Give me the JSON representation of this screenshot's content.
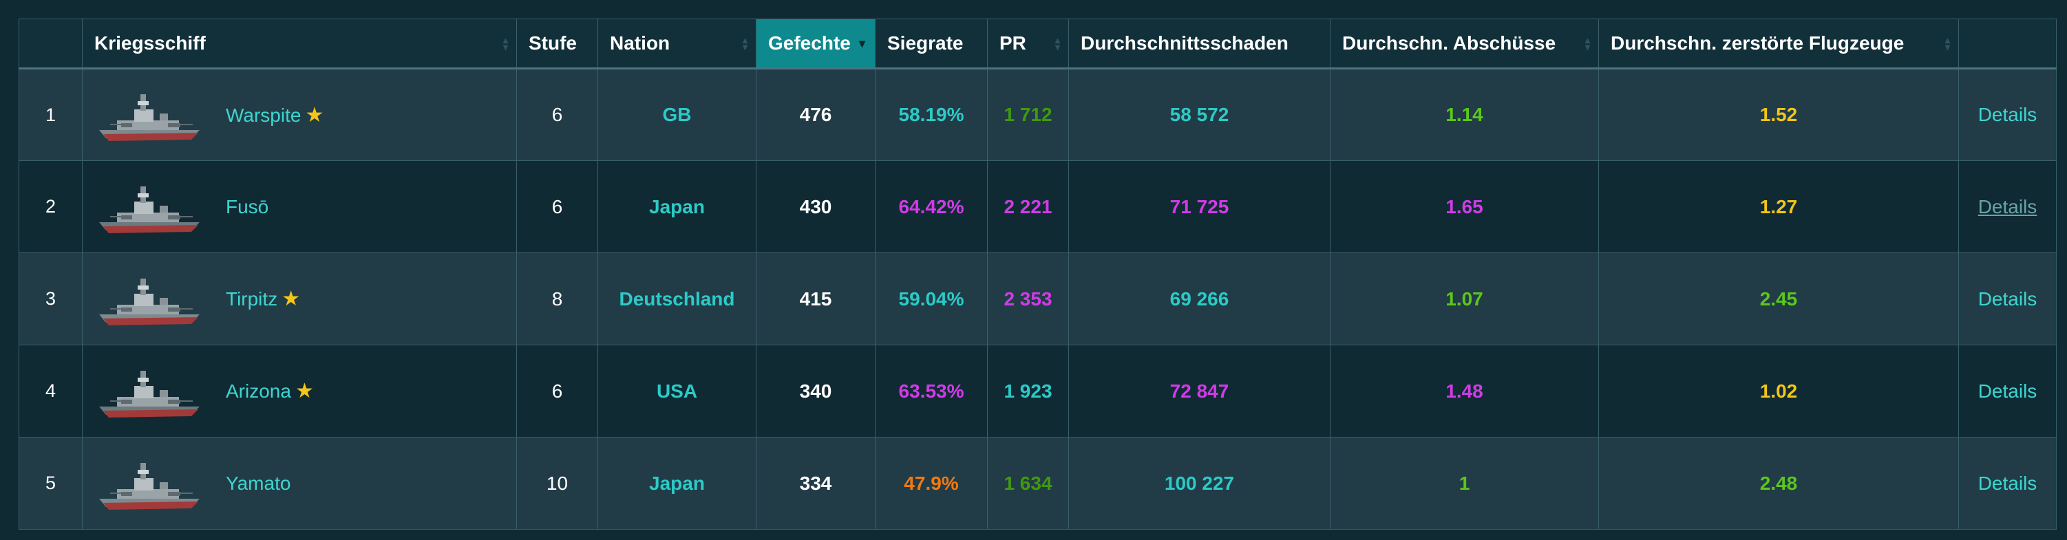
{
  "columns": [
    {
      "key": "rank",
      "label": ""
    },
    {
      "key": "ship",
      "label": "Kriegsschiff"
    },
    {
      "key": "tier",
      "label": "Stufe"
    },
    {
      "key": "nation",
      "label": "Nation"
    },
    {
      "key": "battles",
      "label": "Gefechte"
    },
    {
      "key": "winrate",
      "label": "Siegrate"
    },
    {
      "key": "pr",
      "label": "PR"
    },
    {
      "key": "avg_damage",
      "label": "Durchschnittsschaden"
    },
    {
      "key": "avg_kills",
      "label": "Durchschn. Abschüsse"
    },
    {
      "key": "avg_planes",
      "label": "Durchschn. zerstörte Flugzeuge"
    },
    {
      "key": "details",
      "label": ""
    }
  ],
  "sorted_column": "battles",
  "details_label": "Details",
  "colors": {
    "teal": "#2ccbc7",
    "magenta": "#d23ae8",
    "green": "#3f9a0f",
    "lime": "#5cc81a",
    "orange": "#f07a12",
    "yellow": "#f2c519",
    "star": "#f5c518",
    "header_sorted": "#0e8a8e"
  },
  "rows": [
    {
      "rank": "1",
      "name": "Warspite",
      "premium": true,
      "tier": "6",
      "nation": "GB",
      "battles": "476",
      "winrate": "58.19%",
      "winrate_color": "teal",
      "pr": "1 712",
      "pr_color": "green",
      "avg_damage": "58 572",
      "avg_damage_color": "teal",
      "avg_kills": "1.14",
      "avg_kills_color": "lime",
      "avg_planes": "1.52",
      "avg_planes_color": "yellow",
      "details_hover": false
    },
    {
      "rank": "2",
      "name": "Fusō",
      "premium": false,
      "tier": "6",
      "nation": "Japan",
      "battles": "430",
      "winrate": "64.42%",
      "winrate_color": "magenta",
      "pr": "2 221",
      "pr_color": "magenta",
      "avg_damage": "71 725",
      "avg_damage_color": "magenta",
      "avg_kills": "1.65",
      "avg_kills_color": "magenta",
      "avg_planes": "1.27",
      "avg_planes_color": "yellow",
      "details_hover": true
    },
    {
      "rank": "3",
      "name": "Tirpitz",
      "premium": true,
      "tier": "8",
      "nation": "Deutschland",
      "battles": "415",
      "winrate": "59.04%",
      "winrate_color": "teal",
      "pr": "2 353",
      "pr_color": "magenta",
      "avg_damage": "69 266",
      "avg_damage_color": "teal",
      "avg_kills": "1.07",
      "avg_kills_color": "lime",
      "avg_planes": "2.45",
      "avg_planes_color": "lime",
      "details_hover": false
    },
    {
      "rank": "4",
      "name": "Arizona",
      "premium": true,
      "tier": "6",
      "nation": "USA",
      "battles": "340",
      "winrate": "63.53%",
      "winrate_color": "magenta",
      "pr": "1 923",
      "pr_color": "teal",
      "avg_damage": "72 847",
      "avg_damage_color": "magenta",
      "avg_kills": "1.48",
      "avg_kills_color": "magenta",
      "avg_planes": "1.02",
      "avg_planes_color": "yellow",
      "details_hover": false
    },
    {
      "rank": "5",
      "name": "Yamato",
      "premium": false,
      "tier": "10",
      "nation": "Japan",
      "battles": "334",
      "winrate": "47.9%",
      "winrate_color": "orange",
      "pr": "1 634",
      "pr_color": "green",
      "avg_damage": "100 227",
      "avg_damage_color": "teal",
      "avg_kills": "1",
      "avg_kills_color": "lime",
      "avg_planes": "2.48",
      "avg_planes_color": "lime",
      "details_hover": false
    }
  ]
}
